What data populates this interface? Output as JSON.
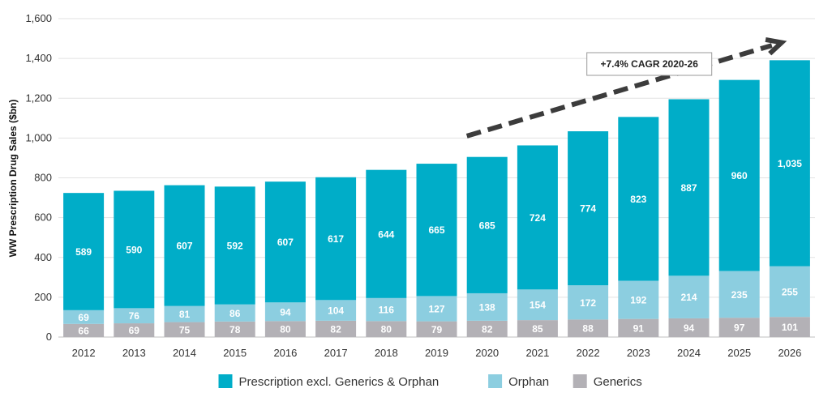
{
  "chart_data": {
    "type": "bar",
    "stacked": true,
    "ylabel": "WW Prescription Drug Sales ($bn)",
    "xlabel": "",
    "ylim": [
      0,
      1600
    ],
    "yticks": [
      0,
      200,
      400,
      600,
      800,
      1000,
      1200,
      1400,
      1600
    ],
    "ytick_labels": [
      "0",
      "200",
      "400",
      "600",
      "800",
      "1,000",
      "1,200",
      "1,400",
      "1,600"
    ],
    "grid": true,
    "categories": [
      "2012",
      "2013",
      "2014",
      "2015",
      "2016",
      "2017",
      "2018",
      "2019",
      "2020",
      "2021",
      "2022",
      "2023",
      "2024",
      "2025",
      "2026"
    ],
    "series": [
      {
        "name": "Generics",
        "color": "#b3b1b6",
        "label_color": "#ffffff",
        "values": [
          66,
          69,
          75,
          78,
          80,
          82,
          80,
          79,
          82,
          85,
          88,
          91,
          94,
          97,
          101
        ],
        "labels": [
          "66",
          "69",
          "75",
          "78",
          "80",
          "82",
          "80",
          "79",
          "82",
          "85",
          "88",
          "91",
          "94",
          "97",
          "101"
        ]
      },
      {
        "name": "Orphan",
        "color": "#8ccee0",
        "label_color": "#ffffff",
        "values": [
          69,
          76,
          81,
          86,
          94,
          104,
          116,
          127,
          138,
          154,
          172,
          192,
          214,
          235,
          255
        ],
        "labels": [
          "69",
          "76",
          "81",
          "86",
          "94",
          "104",
          "116",
          "127",
          "138",
          "154",
          "172",
          "192",
          "214",
          "235",
          "255"
        ]
      },
      {
        "name": "Prescription excl. Generics & Orphan",
        "color": "#00adc8",
        "label_color": "#ffffff",
        "values": [
          589,
          590,
          607,
          592,
          607,
          617,
          644,
          665,
          685,
          724,
          774,
          823,
          887,
          960,
          1035
        ],
        "labels": [
          "589",
          "590",
          "607",
          "592",
          "607",
          "617",
          "644",
          "665",
          "685",
          "724",
          "774",
          "823",
          "887",
          "960",
          "1,035"
        ]
      }
    ],
    "legend": {
      "position": "bottom-center",
      "order": [
        "Prescription excl. Generics & Orphan",
        "Orphan",
        "Generics"
      ]
    },
    "annotation": {
      "text": "+7.4% CAGR 2020-26",
      "arrow_from": {
        "category": "2020",
        "value": 1010
      },
      "arrow_to": {
        "category": "2026",
        "value": 1480
      },
      "arrow_color": "#3c3c3c"
    }
  }
}
